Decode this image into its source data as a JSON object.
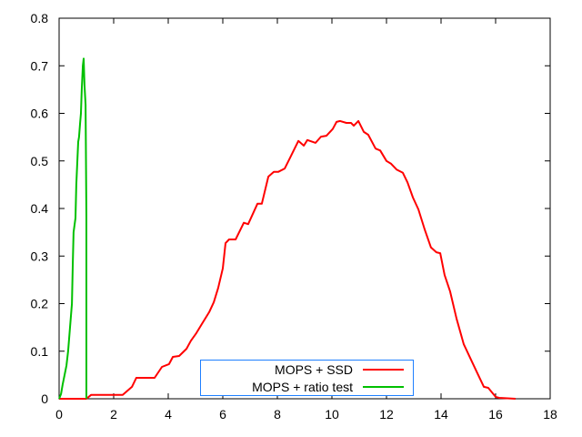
{
  "chart_data": {
    "type": "line",
    "title": "",
    "xlabel": "",
    "ylabel": "",
    "xlim": [
      0,
      18
    ],
    "ylim": [
      0,
      0.8
    ],
    "xticks": [
      "0",
      "2",
      "4",
      "6",
      "8",
      "10",
      "12",
      "14",
      "16",
      "18"
    ],
    "yticks": [
      "0",
      "0.1",
      "0.2",
      "0.3",
      "0.4",
      "0.5",
      "0.6",
      "0.7",
      "0.8"
    ],
    "grid": false,
    "legend_position": "bottom-center",
    "series": [
      {
        "name": "MOPS + SSD",
        "color": "#ff0000",
        "x": [
          0,
          1,
          1.17,
          2.33,
          2.67,
          2.83,
          3.5,
          3.77,
          4.03,
          4.17,
          4.4,
          4.67,
          4.83,
          5.03,
          5.23,
          5.5,
          5.67,
          5.83,
          6,
          6.1,
          6.23,
          6.47,
          6.77,
          6.93,
          7.27,
          7.43,
          7.67,
          7.87,
          8.03,
          8.27,
          8.47,
          8.77,
          8.97,
          9.1,
          9.4,
          9.6,
          9.8,
          10.03,
          10.17,
          10.3,
          10.53,
          10.7,
          10.8,
          10.97,
          11.17,
          11.33,
          11.6,
          11.77,
          12,
          12.17,
          12.37,
          12.6,
          12.77,
          12.97,
          13.17,
          13.4,
          13.63,
          13.83,
          13.97,
          14.13,
          14.33,
          14.57,
          14.83,
          15.1,
          15.33,
          15.57,
          15.73,
          16,
          16.13,
          16.73
        ],
        "y": [
          0,
          0,
          0.008,
          0.008,
          0.025,
          0.044,
          0.044,
          0.067,
          0.073,
          0.088,
          0.09,
          0.105,
          0.122,
          0.138,
          0.157,
          0.182,
          0.203,
          0.233,
          0.274,
          0.327,
          0.335,
          0.335,
          0.37,
          0.367,
          0.41,
          0.41,
          0.467,
          0.477,
          0.477,
          0.484,
          0.507,
          0.542,
          0.532,
          0.544,
          0.538,
          0.551,
          0.553,
          0.567,
          0.582,
          0.584,
          0.58,
          0.58,
          0.574,
          0.584,
          0.561,
          0.555,
          0.526,
          0.522,
          0.5,
          0.494,
          0.482,
          0.475,
          0.455,
          0.423,
          0.398,
          0.356,
          0.318,
          0.308,
          0.306,
          0.26,
          0.226,
          0.168,
          0.115,
          0.082,
          0.054,
          0.025,
          0.023,
          0.004,
          0.002,
          0
        ]
      },
      {
        "name": "MOPS + ratio test",
        "color": "#00c000",
        "x": [
          0,
          0.07,
          0.13,
          0.2,
          0.27,
          0.33,
          0.4,
          0.47,
          0.5,
          0.53,
          0.6,
          0.63,
          0.7,
          0.73,
          0.77,
          0.8,
          0.83,
          0.87,
          0.9,
          0.93,
          0.97,
          1.0,
          1.0
        ],
        "y": [
          0,
          0.01,
          0.03,
          0.05,
          0.07,
          0.1,
          0.15,
          0.2,
          0.28,
          0.35,
          0.38,
          0.45,
          0.54,
          0.55,
          0.58,
          0.6,
          0.65,
          0.7,
          0.715,
          0.66,
          0.618,
          0.383,
          0
        ]
      }
    ]
  }
}
